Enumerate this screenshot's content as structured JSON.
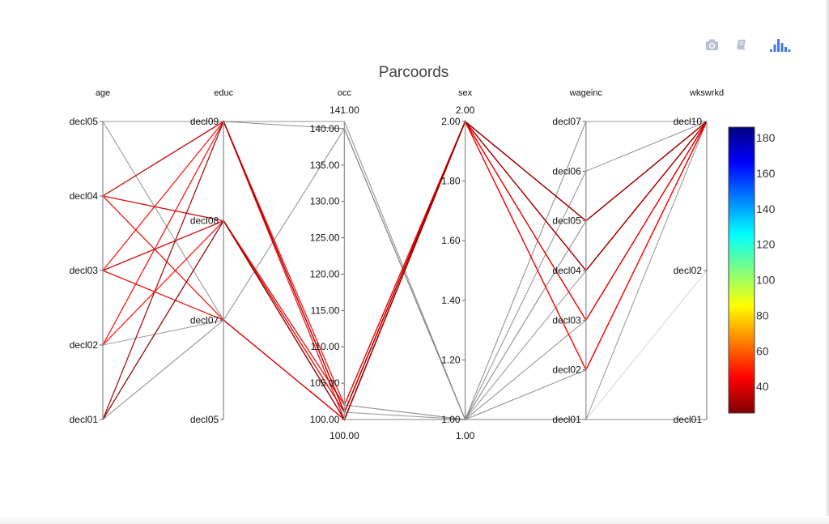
{
  "toolbar": {
    "buttons": [
      {
        "name": "camera-icon",
        "title": "Download plot as a png"
      },
      {
        "name": "edit-in-chart-studio-icon",
        "title": "Edit in Chart Studio"
      },
      {
        "name": "plotly-logo-icon",
        "title": "Produced with Plotly"
      }
    ]
  },
  "chart_data": {
    "type": "parcoords",
    "title": "Parcoords",
    "dimensions": [
      {
        "label": "age",
        "kind": "categorical",
        "ticks": [
          "decl05",
          "decl04",
          "decl03",
          "decl02",
          "decl01"
        ]
      },
      {
        "label": "educ",
        "kind": "categorical",
        "ticks": [
          "decl09",
          "decl08",
          "decl07",
          "decl05"
        ]
      },
      {
        "label": "occ",
        "kind": "numeric",
        "range": [
          100,
          141
        ],
        "range_labels": [
          "141.00",
          "100.00"
        ],
        "ticks": [
          "140.00",
          "135.00",
          "130.00",
          "125.00",
          "120.00",
          "115.00",
          "110.00",
          "105.00",
          "100.00"
        ],
        "tick_values": [
          140,
          135,
          130,
          125,
          120,
          115,
          110,
          105,
          100
        ]
      },
      {
        "label": "sex",
        "kind": "numeric",
        "range": [
          1,
          2
        ],
        "range_labels": [
          "2.00",
          "1.00"
        ],
        "ticks": [
          "2.00",
          "1.80",
          "1.60",
          "1.40",
          "1.20",
          "1.00"
        ],
        "tick_values": [
          2,
          1.8,
          1.6,
          1.4,
          1.2,
          1
        ]
      },
      {
        "label": "wageinc",
        "kind": "categorical",
        "ticks": [
          "decl07",
          "decl06",
          "decl05",
          "decl04",
          "decl03",
          "decl02",
          "decl01"
        ]
      },
      {
        "label": "wkswrkd",
        "kind": "categorical",
        "ticks": [
          "decl10",
          "decl02",
          "decl01"
        ]
      }
    ],
    "colorscale": {
      "name": "Jet (reversed)",
      "range": [
        25,
        186
      ],
      "tick_values": [
        40,
        60,
        80,
        100,
        120,
        140,
        160,
        180
      ],
      "tick_labels": [
        "40",
        "60",
        "80",
        "100",
        "120",
        "140",
        "160",
        "180"
      ]
    },
    "lines": [
      {
        "values": [
          "decl04",
          "decl09",
          101,
          2,
          "decl05",
          "decl10"
        ],
        "color": 38
      },
      {
        "values": [
          "decl04",
          "decl08",
          100,
          2,
          "decl04",
          "decl10"
        ],
        "color": 40
      },
      {
        "values": [
          "decl04",
          "decl07",
          100,
          2,
          "decl03",
          "decl10"
        ],
        "color": 42
      },
      {
        "values": [
          "decl03",
          "decl09",
          102,
          2,
          "decl02",
          "decl10"
        ],
        "color": 44
      },
      {
        "values": [
          "decl03",
          "decl08",
          101,
          2,
          "decl05",
          "decl10"
        ],
        "color": 39
      },
      {
        "values": [
          "decl03",
          "decl07",
          100,
          2,
          "decl04",
          "decl10"
        ],
        "color": 41
      },
      {
        "values": [
          "decl02",
          "decl09",
          100,
          2,
          "decl03",
          "decl10"
        ],
        "color": 43
      },
      {
        "values": [
          "decl02",
          "decl08",
          102,
          2,
          "decl02",
          "decl10"
        ],
        "color": 46
      },
      {
        "values": [
          "decl01",
          "decl09",
          101,
          2,
          "decl04",
          "decl10"
        ],
        "color": 30
      },
      {
        "values": [
          "decl01",
          "decl08",
          100,
          2,
          "decl05",
          "decl10"
        ],
        "color": 28
      },
      {
        "values": [
          "decl05",
          "decl09",
          141,
          1,
          "decl07",
          "decl10"
        ],
        "color": 68
      },
      {
        "values": [
          "decl05",
          "decl07",
          100,
          1,
          "decl06",
          "decl10"
        ],
        "color": 70
      },
      {
        "values": [
          "decl04",
          "decl09",
          140,
          1,
          "decl05",
          "decl10"
        ],
        "color": 66
      },
      {
        "values": [
          "decl02",
          "decl07",
          100,
          1,
          "decl04",
          "decl10"
        ],
        "color": 72
      },
      {
        "values": [
          "decl01",
          "decl07",
          140,
          1,
          "decl03",
          "decl10"
        ],
        "color": 69
      },
      {
        "values": [
          "decl01",
          "decl08",
          100,
          1,
          "decl02",
          "decl10"
        ],
        "color": 67
      },
      {
        "values": [
          "decl04",
          "decl08",
          101,
          1,
          "decl01",
          "decl10"
        ],
        "color": 71
      },
      {
        "values": [
          "decl03",
          "decl08",
          102,
          1,
          "decl01",
          "decl01"
        ],
        "color": 65
      },
      {
        "values": [
          "decl01",
          "decl09",
          100,
          1,
          "decl01",
          "decl02"
        ],
        "color": 82
      }
    ]
  }
}
